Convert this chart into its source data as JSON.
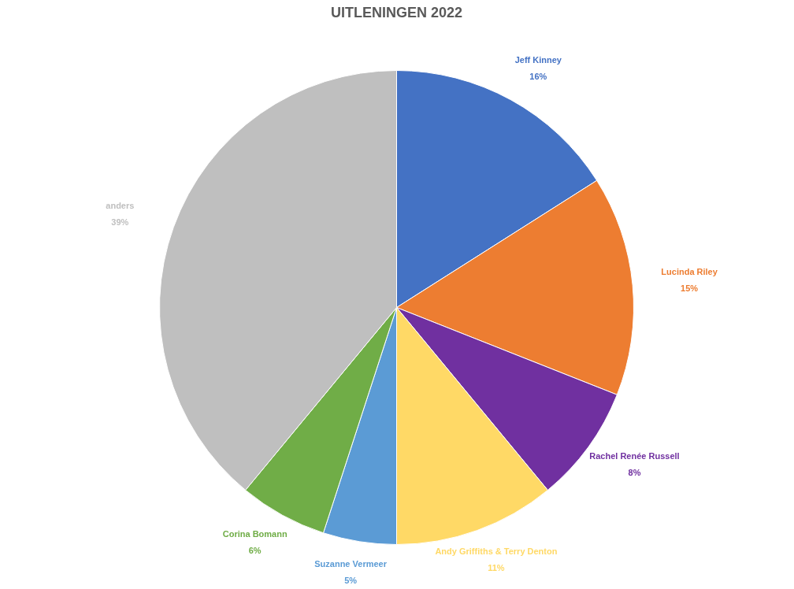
{
  "chart_data": {
    "type": "pie",
    "title": "UITLENINGEN 2022",
    "categories": [
      "Jeff Kinney",
      "Lucinda Riley",
      "Rachel Renée Russell",
      "Andy Griffiths & Terry Denton",
      "Suzanne Vermeer",
      "Corina Bomann",
      "anders"
    ],
    "values": [
      16,
      15,
      8,
      11,
      5,
      6,
      39
    ],
    "value_labels": [
      "16%",
      "15%",
      "8%",
      "11%",
      "5%",
      "6%",
      "39%"
    ],
    "colors": [
      "#4472c4",
      "#ed7d31",
      "#7030a0",
      "#ffd966",
      "#5b9bd5",
      "#70ad47",
      "#bfbfbf"
    ],
    "legend": false
  }
}
